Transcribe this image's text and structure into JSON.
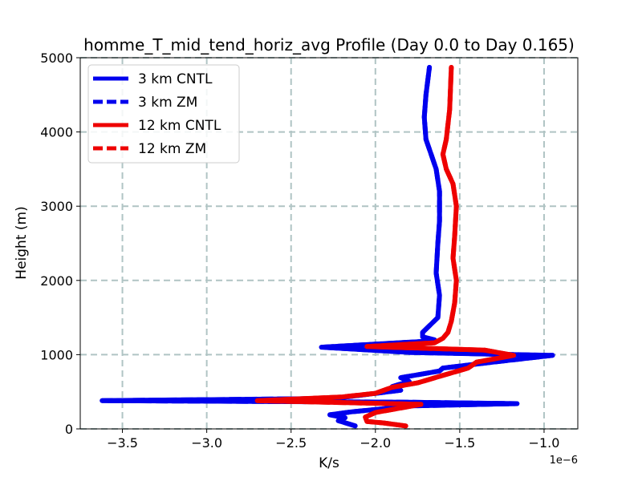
{
  "chart_data": {
    "type": "line",
    "title": "homme_T_mid_tend_horiz_avg Profile (Day 0.0 to Day 0.165)",
    "xlabel": "K/s",
    "ylabel": "Height (m)",
    "x_offset_label": "1e−6",
    "xlim": [
      -3.75,
      -0.8
    ],
    "ylim": [
      0,
      5000
    ],
    "xticks": [
      -3.5,
      -3.0,
      -2.5,
      -2.0,
      -1.5,
      -1.0
    ],
    "xtick_labels": [
      "−3.5",
      "−3.0",
      "−2.5",
      "−2.0",
      "−1.5",
      "−1.0"
    ],
    "yticks": [
      0,
      1000,
      2000,
      3000,
      4000,
      5000
    ],
    "ytick_labels": [
      "0",
      "1000",
      "2000",
      "3000",
      "4000",
      "5000"
    ],
    "grid": true,
    "legend_position": "top-left",
    "series": [
      {
        "name": "3 km CNTL",
        "color": "#0000ee",
        "style": "solid",
        "x": [
          -2.12,
          -2.22,
          -2.18,
          -2.27,
          -2.14,
          -1.78,
          -1.16,
          -1.8,
          -3.62,
          -2.25,
          -2.1,
          -1.85,
          -1.9,
          -1.8,
          -1.85,
          -1.62,
          -1.6,
          -1.3,
          -0.95,
          -1.8,
          -2.32,
          -1.7,
          -1.65,
          -1.72,
          -1.72,
          -1.63,
          -1.62,
          -1.64,
          -1.63,
          -1.62,
          -1.62,
          -1.64,
          -1.67,
          -1.7,
          -1.71,
          -1.7,
          -1.68
        ],
        "y": [
          40,
          110,
          150,
          190,
          230,
          310,
          340,
          360,
          380,
          410,
          450,
          520,
          570,
          640,
          690,
          780,
          820,
          900,
          990,
          1030,
          1100,
          1180,
          1200,
          1240,
          1300,
          1500,
          1800,
          2100,
          2500,
          2800,
          3200,
          3500,
          3700,
          3900,
          4200,
          4500,
          4870
        ]
      },
      {
        "name": "3 km ZM",
        "color": "#0000ee",
        "style": "dashed",
        "x": [
          -2.12,
          -2.22,
          -2.18,
          -2.27,
          -2.14,
          -1.78,
          -1.16,
          -1.8,
          -3.62,
          -2.25,
          -2.1,
          -1.85,
          -1.9,
          -1.8,
          -1.85,
          -1.62,
          -1.6,
          -1.3,
          -0.95,
          -1.8,
          -2.32,
          -1.7,
          -1.65,
          -1.72,
          -1.72,
          -1.63,
          -1.62,
          -1.64,
          -1.63,
          -1.62,
          -1.62,
          -1.64,
          -1.67,
          -1.7,
          -1.71,
          -1.7,
          -1.68
        ],
        "y": [
          40,
          110,
          150,
          190,
          230,
          310,
          340,
          360,
          380,
          410,
          450,
          520,
          570,
          640,
          690,
          780,
          820,
          900,
          990,
          1030,
          1100,
          1180,
          1200,
          1240,
          1300,
          1500,
          1800,
          2100,
          2500,
          2800,
          3200,
          3500,
          3700,
          3900,
          4200,
          4500,
          4870
        ]
      },
      {
        "name": "12 km CNTL",
        "color": "#ee0000",
        "style": "solid",
        "x": [
          -1.82,
          -1.95,
          -2.05,
          -2.06,
          -2.0,
          -1.73,
          -2.7,
          -2.2,
          -2.0,
          -1.9,
          -1.75,
          -1.6,
          -1.45,
          -1.4,
          -1.18,
          -1.35,
          -2.05,
          -1.65,
          -1.6,
          -1.57,
          -1.55,
          -1.53,
          -1.52,
          -1.54,
          -1.53,
          -1.52,
          -1.54,
          -1.58,
          -1.6,
          -1.58,
          -1.56,
          -1.55
        ],
        "y": [
          40,
          80,
          100,
          160,
          220,
          330,
          380,
          430,
          480,
          560,
          620,
          720,
          820,
          900,
          990,
          1060,
          1110,
          1160,
          1220,
          1300,
          1450,
          1700,
          2000,
          2300,
          2600,
          3000,
          3300,
          3500,
          3700,
          3900,
          4300,
          4870
        ]
      },
      {
        "name": "12 km ZM",
        "color": "#ee0000",
        "style": "dashed",
        "x": [
          -1.82,
          -1.95,
          -2.05,
          -2.06,
          -2.0,
          -1.73,
          -2.7,
          -2.2,
          -2.0,
          -1.9,
          -1.75,
          -1.6,
          -1.45,
          -1.4,
          -1.18,
          -1.35,
          -2.05,
          -1.65,
          -1.6,
          -1.57,
          -1.55,
          -1.53,
          -1.52,
          -1.54,
          -1.53,
          -1.52,
          -1.54,
          -1.58,
          -1.6,
          -1.58,
          -1.56,
          -1.55
        ],
        "y": [
          40,
          80,
          100,
          160,
          220,
          330,
          380,
          430,
          480,
          560,
          620,
          720,
          820,
          900,
          990,
          1060,
          1110,
          1160,
          1220,
          1300,
          1450,
          1700,
          2000,
          2300,
          2600,
          3000,
          3300,
          3500,
          3700,
          3900,
          4300,
          4870
        ]
      }
    ]
  }
}
